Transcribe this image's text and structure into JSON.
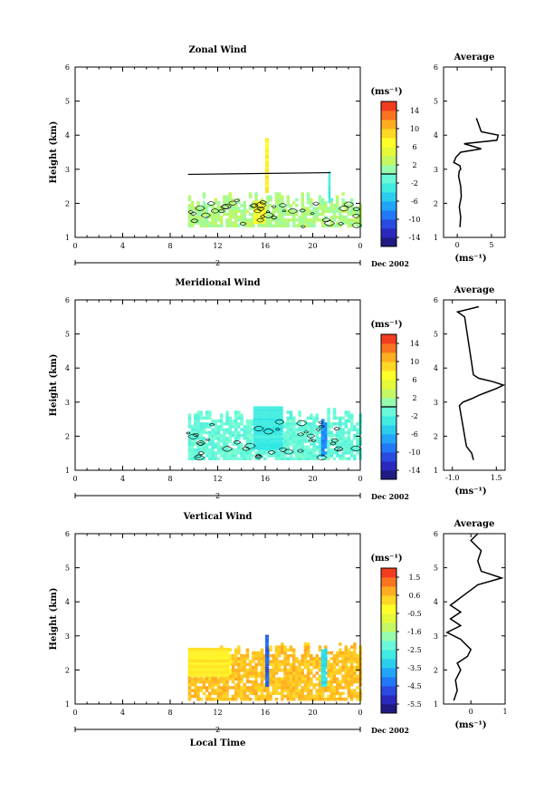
{
  "figure": {
    "panels": [
      {
        "title": "Zonal Wind",
        "ylabel": "Height (km)",
        "colorbar_units": "(ms⁻¹)",
        "colorbar_ticks": [
          "14",
          "10",
          "6",
          "2",
          "-2",
          "-6",
          "-10",
          "-14"
        ],
        "date_label": "Dec 2002",
        "date_day": "2",
        "avg_title": "Average",
        "avg_xticks": [
          "0",
          "5"
        ],
        "avg_xlabel": "(ms⁻¹)"
      },
      {
        "title": "Meridional Wind",
        "ylabel": "Height (km)",
        "colorbar_units": "(ms⁻¹)",
        "colorbar_ticks": [
          "14",
          "10",
          "6",
          "2",
          "-2",
          "-6",
          "-10",
          "-14"
        ],
        "date_label": "Dec 2002",
        "date_day": "2",
        "avg_title": "Average",
        "avg_xticks": [
          "-1.0",
          "1.5"
        ],
        "avg_xlabel": "(ms⁻¹)"
      },
      {
        "title": "Vertical Wind",
        "ylabel": "Height (km)",
        "colorbar_units": "(ms⁻¹)",
        "colorbar_ticks": [
          "1.5",
          "0.6",
          "-0.5",
          "-1.6",
          "-2.5",
          "-3.5",
          "-4.5",
          "-5.5"
        ],
        "date_label": "Dec 2002",
        "date_day": "2",
        "avg_title": "Average",
        "avg_xticks": [
          "0",
          "1"
        ],
        "avg_xlabel": "(ms⁻¹)",
        "xlabel": "Local Time"
      }
    ],
    "x_ticks": [
      "0",
      "4",
      "8",
      "12",
      "16",
      "20",
      "0"
    ],
    "y_ticks": [
      "1",
      "2",
      "3",
      "4",
      "5",
      "6"
    ]
  },
  "chart_data": [
    {
      "type": "heatmap",
      "title": "Zonal Wind",
      "xlabel": "",
      "ylabel": "Height (km)",
      "xlim": [
        0,
        24
      ],
      "ylim": [
        1,
        6
      ],
      "colorbar_range": [
        -16,
        16
      ],
      "grid": false,
      "data_region": {
        "x": [
          9.5,
          24
        ],
        "y": [
          1.3,
          2.3
        ]
      },
      "contour_line": {
        "x": [
          9.5,
          21.5
        ],
        "y": [
          2.85,
          2.9
        ]
      },
      "regions": [
        {
          "x": [
            9.5,
            24
          ],
          "y": [
            1.3,
            2.3
          ],
          "value": 2
        },
        {
          "x": [
            16,
            16.3
          ],
          "y": [
            2.3,
            3.9
          ],
          "value": 8
        },
        {
          "x": [
            21.3,
            21.5
          ],
          "y": [
            2.0,
            2.9
          ],
          "value": -3
        },
        {
          "x": [
            15,
            16
          ],
          "y": [
            1.4,
            2.0
          ],
          "value": 6
        }
      ],
      "average_profile": {
        "xlim": [
          -2,
          7
        ],
        "x": [
          0.4,
          0.5,
          0.3,
          0.6,
          0.5,
          0.2,
          0.3,
          0.5,
          0.4,
          -0.5,
          -0.2,
          0.5,
          3.5,
          1.0,
          5.8,
          6.0,
          3.5,
          2.8
        ],
        "y": [
          1.3,
          1.6,
          1.9,
          2.2,
          2.5,
          2.8,
          2.95,
          3.0,
          3.1,
          3.2,
          3.35,
          3.5,
          3.6,
          3.75,
          3.85,
          4.0,
          4.1,
          4.5
        ]
      }
    },
    {
      "type": "heatmap",
      "title": "Meridional Wind",
      "xlabel": "",
      "ylabel": "Height (km)",
      "xlim": [
        0,
        24
      ],
      "ylim": [
        1,
        6
      ],
      "colorbar_range": [
        -16,
        16
      ],
      "grid": false,
      "data_region": {
        "x": [
          9.5,
          24
        ],
        "y": [
          1.3,
          2.8
        ]
      },
      "regions": [
        {
          "x": [
            9.5,
            24
          ],
          "y": [
            1.3,
            2.3
          ],
          "value": -1
        },
        {
          "x": [
            15,
            17.5
          ],
          "y": [
            1.6,
            2.8
          ],
          "value": -3
        },
        {
          "x": [
            20.7,
            21
          ],
          "y": [
            1.4,
            2.5
          ],
          "value": -8
        }
      ],
      "average_profile": {
        "xlim": [
          -1.5,
          2
        ],
        "x": [
          0.2,
          0.1,
          -0.2,
          -0.3,
          -0.4,
          -0.5,
          -0.6,
          -0.4,
          0.1,
          0.5,
          1.0,
          1.5,
          1.9,
          1.3,
          0.5,
          0.2,
          -0.3,
          -0.7,
          0.5
        ],
        "y": [
          1.3,
          1.5,
          1.7,
          2.0,
          2.3,
          2.6,
          2.9,
          3.0,
          3.1,
          3.2,
          3.3,
          3.4,
          3.5,
          3.6,
          3.7,
          3.8,
          5.5,
          5.65,
          5.8
        ]
      }
    },
    {
      "type": "heatmap",
      "title": "Vertical Wind",
      "xlabel": "Local Time",
      "ylabel": "Height (km)",
      "xlim": [
        0,
        24
      ],
      "ylim": [
        1,
        6
      ],
      "colorbar_range": [
        -6,
        2
      ],
      "grid": false,
      "data_region": {
        "x": [
          9.5,
          24
        ],
        "y": [
          1.1,
          2.8
        ]
      },
      "regions": [
        {
          "x": [
            9.5,
            24
          ],
          "y": [
            1.1,
            2.6
          ],
          "value": 0.5
        },
        {
          "x": [
            16,
            16.3
          ],
          "y": [
            1.5,
            3.0
          ],
          "value": -4.5
        },
        {
          "x": [
            20.7,
            21.1
          ],
          "y": [
            1.5,
            2.6
          ],
          "value": -3
        },
        {
          "x": [
            9.5,
            13
          ],
          "y": [
            1.8,
            2.6
          ],
          "value": 0.0
        }
      ],
      "average_profile": {
        "xlim": [
          -0.8,
          1
        ],
        "x": [
          -0.5,
          -0.4,
          -0.45,
          -0.3,
          -0.4,
          -0.1,
          0.0,
          -0.3,
          -0.7,
          -0.3,
          -0.6,
          -0.3,
          -0.6,
          -0.2,
          0.2,
          0.9,
          0.3,
          0.2,
          0.3,
          0.0,
          0.2
        ],
        "y": [
          1.1,
          1.4,
          1.7,
          2.0,
          2.2,
          2.4,
          2.6,
          2.9,
          3.1,
          3.3,
          3.5,
          3.7,
          3.9,
          4.2,
          4.5,
          4.7,
          4.9,
          5.2,
          5.5,
          5.8,
          6.0
        ]
      }
    }
  ]
}
